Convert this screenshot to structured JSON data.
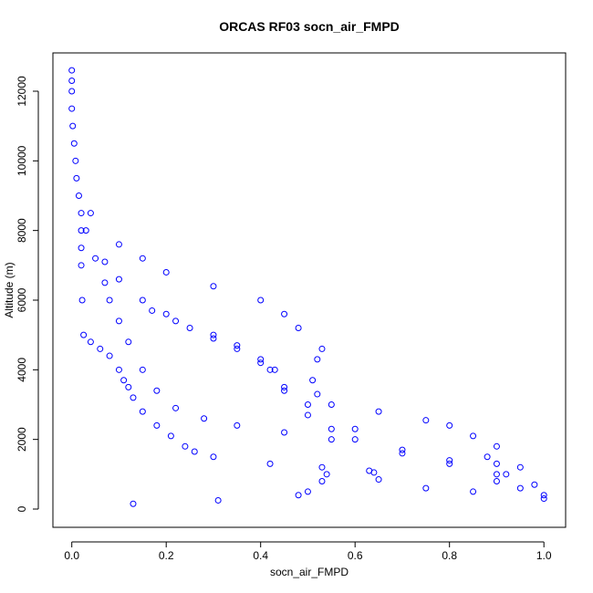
{
  "chart_data": {
    "type": "scatter",
    "title": "ORCAS RF03 socn_air_FMPD",
    "x_label": "socn_air_FMPD",
    "y_label": "Altitude (m)",
    "color": "#0000ff",
    "xlim": [
      -0.04,
      1.046
    ],
    "ylim": [
      -524,
      13100
    ],
    "xticks": [
      {
        "value": 0,
        "label": "0.0"
      },
      {
        "value": 0.2,
        "label": "0.2"
      },
      {
        "value": 0.4,
        "label": "0.4"
      },
      {
        "value": 0.6,
        "label": "0.6"
      },
      {
        "value": 0.8,
        "label": "0.8"
      },
      {
        "value": 1,
        "label": "1.0"
      }
    ],
    "yticks": [
      0,
      2000,
      4000,
      6000,
      8000,
      10000,
      12000
    ],
    "x": [
      0.0,
      0.0,
      0.0,
      0.0,
      0.002,
      0.005,
      0.008,
      0.01,
      0.015,
      0.02,
      0.02,
      0.02,
      0.02,
      0.022,
      0.025,
      0.04,
      0.06,
      0.08,
      0.1,
      0.11,
      0.12,
      0.13,
      0.15,
      0.18,
      0.21,
      0.24,
      0.26,
      0.3,
      0.42,
      0.53,
      0.54,
      0.53,
      0.5,
      0.48,
      0.31,
      0.13,
      0.03,
      0.05,
      0.07,
      0.08,
      0.1,
      0.12,
      0.15,
      0.18,
      0.22,
      0.28,
      0.35,
      0.45,
      0.55,
      0.63,
      0.64,
      0.04,
      0.1,
      0.15,
      0.2,
      0.3,
      0.4,
      0.45,
      0.48,
      0.53,
      0.52,
      0.51,
      0.52,
      0.55,
      0.65,
      0.75,
      0.8,
      0.85,
      0.9,
      0.95,
      0.98,
      1.0,
      0.07,
      0.1,
      0.15,
      0.2,
      0.25,
      0.3,
      0.35,
      0.4,
      0.42,
      0.45,
      0.5,
      0.55,
      0.6,
      0.7,
      0.8,
      0.9,
      0.95,
      1.0,
      0.17,
      0.22,
      0.3,
      0.35,
      0.4,
      0.43,
      0.45,
      0.5,
      0.6,
      0.7,
      0.8,
      0.88,
      0.9,
      0.92,
      0.9,
      0.85,
      0.75,
      0.65
    ],
    "y": [
      12600,
      12300,
      12000,
      11500,
      11000,
      10500,
      10000,
      9500,
      9000,
      8500,
      8000,
      7500,
      7000,
      6000,
      5000,
      4800,
      4600,
      4400,
      4000,
      3700,
      3500,
      3200,
      2800,
      2400,
      2100,
      1800,
      1650,
      1500,
      1300,
      1200,
      1000,
      800,
      500,
      400,
      250,
      150,
      8000,
      7200,
      6500,
      6000,
      5400,
      4800,
      4000,
      3400,
      2900,
      2600,
      2400,
      2200,
      2000,
      1100,
      1050,
      8500,
      7600,
      7200,
      6800,
      6400,
      6000,
      5600,
      5200,
      4600,
      4300,
      3700,
      3300,
      3000,
      2800,
      2550,
      2400,
      2100,
      1800,
      1200,
      700,
      400,
      7100,
      6600,
      6000,
      5600,
      5200,
      4900,
      4600,
      4200,
      4000,
      3400,
      2700,
      2300,
      2000,
      1600,
      1300,
      1000,
      600,
      300,
      5700,
      5400,
      5000,
      4700,
      4300,
      4000,
      3500,
      3000,
      2300,
      1700,
      1400,
      1500,
      1300,
      1000,
      800,
      500,
      600,
      850
    ]
  }
}
